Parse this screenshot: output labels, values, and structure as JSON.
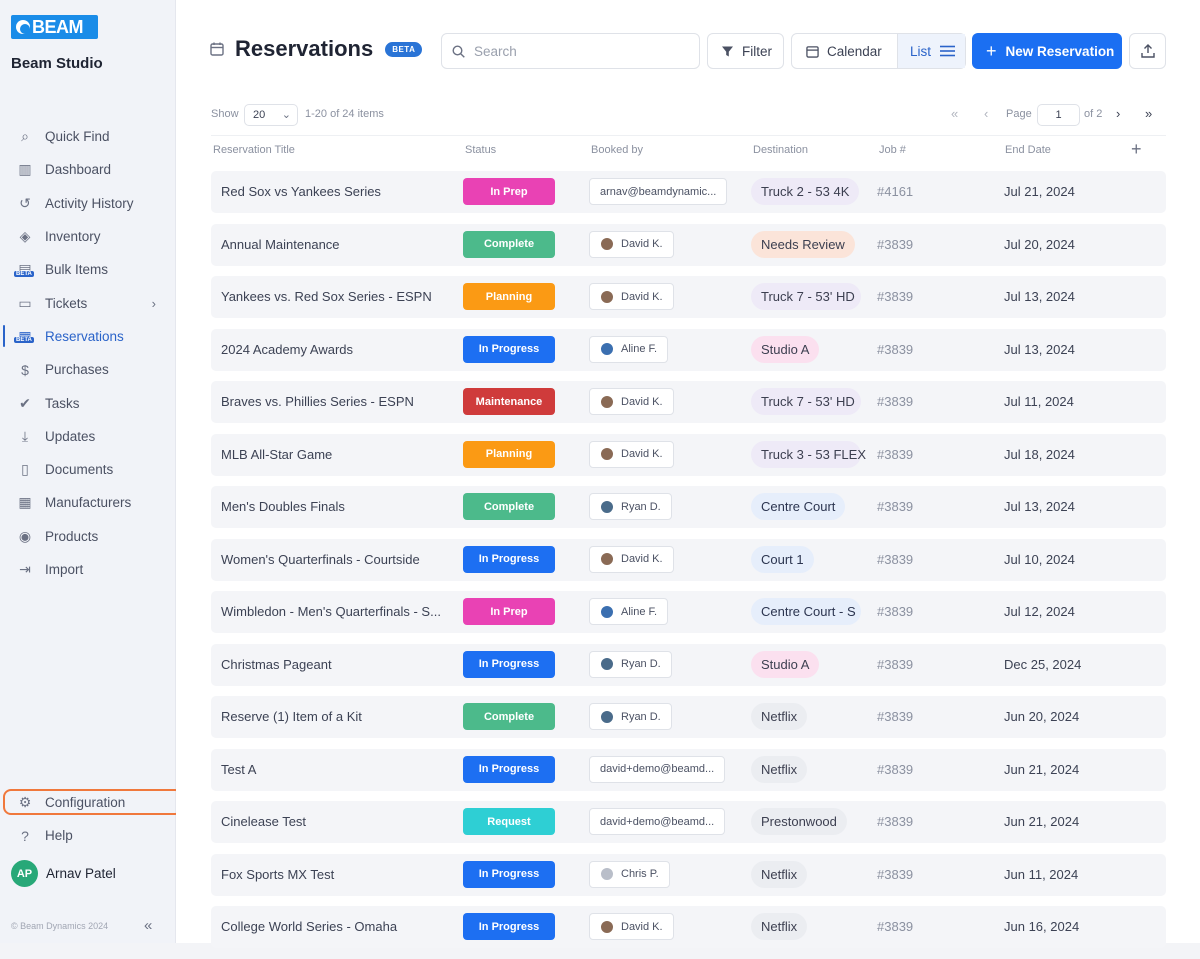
{
  "sidebar": {
    "logo_text": "BEAM",
    "org_name": "Beam Studio",
    "items": [
      {
        "label": "Quick Find",
        "icon": "search-icon"
      },
      {
        "label": "Dashboard",
        "icon": "bar-chart-icon"
      },
      {
        "label": "Activity History",
        "icon": "history-icon"
      },
      {
        "label": "Inventory",
        "icon": "box-icon"
      },
      {
        "label": "Bulk Items",
        "icon": "bulk-items-icon",
        "badge": "BETA"
      },
      {
        "label": "Tickets",
        "icon": "tickets-icon"
      },
      {
        "label": "Reservations",
        "icon": "reservations-icon",
        "badge": "BETA",
        "active": true
      },
      {
        "label": "Purchases",
        "icon": "purchases-icon"
      },
      {
        "label": "Tasks",
        "icon": "check-circle-icon"
      },
      {
        "label": "Updates",
        "icon": "download-icon"
      },
      {
        "label": "Documents",
        "icon": "document-icon"
      },
      {
        "label": "Manufacturers",
        "icon": "building-icon"
      },
      {
        "label": "Products",
        "icon": "camera-icon"
      },
      {
        "label": "Import",
        "icon": "import-icon"
      }
    ],
    "bottom_items": [
      {
        "label": "Configuration",
        "icon": "gear-icon"
      },
      {
        "label": "Help",
        "icon": "help-icon"
      }
    ],
    "user": {
      "initials": "AP",
      "name": "Arnav Patel"
    },
    "copyright": "© Beam Dynamics 2024"
  },
  "header": {
    "title": "Reservations",
    "beta": "BETA",
    "search_placeholder": "Search",
    "filter_label": "Filter",
    "calendar_label": "Calendar",
    "list_label": "List",
    "new_label": "New Reservation"
  },
  "pager": {
    "show_label": "Show",
    "page_size": "20",
    "range": "1-20 of 24 items",
    "page_label": "Page",
    "page": "1",
    "of": "of 2"
  },
  "columns": {
    "title": "Reservation Title",
    "status": "Status",
    "booked": "Booked by",
    "dest": "Destination",
    "job": "Job #",
    "end": "End Date"
  },
  "colors": {
    "accent": "#1b6ff2",
    "highlight": "#f0783c"
  },
  "rows": [
    {
      "title": "Red Sox vs Yankees Series",
      "status": "In Prep",
      "status_color": "#e942b4",
      "booked": "arnav@beamdynamic...",
      "avatar": "",
      "dest": "Truck 2 - 53 4K",
      "dest_bg": "#eeeaf7",
      "dest_fg": "#3c3f50",
      "job": "#4161",
      "end": "Jul 21, 2024"
    },
    {
      "title": "Annual Maintenance",
      "status": "Complete",
      "status_color": "#4cba8b",
      "booked": "David K.",
      "avatar": "#8a6a55",
      "dest": "Needs Review",
      "dest_bg": "#fbe4d9",
      "dest_fg": "#3c3f50",
      "job": "#3839",
      "end": "Jul 20, 2024"
    },
    {
      "title": "Yankees vs. Red Sox Series - ESPN",
      "status": "Planning",
      "status_color": "#fb9a14",
      "booked": "David K.",
      "avatar": "#8a6a55",
      "dest": "Truck 7 - 53' HD",
      "dest_bg": "#eeeaf7",
      "dest_fg": "#3c3f50",
      "job": "#3839",
      "end": "Jul 13, 2024"
    },
    {
      "title": "2024 Academy Awards",
      "status": "In Progress",
      "status_color": "#1d6ff2",
      "booked": "Aline F.",
      "avatar": "#3b6fb0",
      "dest": "Studio A",
      "dest_bg": "#fbe0ef",
      "dest_fg": "#3c3f50",
      "job": "#3839",
      "end": "Jul 13, 2024"
    },
    {
      "title": "Braves vs. Phillies Series - ESPN",
      "status": "Maintenance",
      "status_color": "#cf3b3b",
      "booked": "David K.",
      "avatar": "#8a6a55",
      "dest": "Truck 7 - 53' HD",
      "dest_bg": "#eeeaf7",
      "dest_fg": "#3c3f50",
      "job": "#3839",
      "end": "Jul 11, 2024"
    },
    {
      "title": "MLB All-Star Game",
      "status": "Planning",
      "status_color": "#fb9a14",
      "booked": "David K.",
      "avatar": "#8a6a55",
      "dest": "Truck 3 - 53 FLEX",
      "dest_bg": "#eeeaf7",
      "dest_fg": "#3c3f50",
      "job": "#3839",
      "end": "Jul 18, 2024"
    },
    {
      "title": "Men's Doubles Finals",
      "status": "Complete",
      "status_color": "#4cba8b",
      "booked": "Ryan D.",
      "avatar": "#4a6b8a",
      "dest": "Centre Court",
      "dest_bg": "#e6eefb",
      "dest_fg": "#2c3550",
      "job": "#3839",
      "end": "Jul 13, 2024"
    },
    {
      "title": "Women's Quarterfinals - Courtside",
      "status": "In Progress",
      "status_color": "#1d6ff2",
      "booked": "David K.",
      "avatar": "#8a6a55",
      "dest": "Court 1",
      "dest_bg": "#e6eefb",
      "dest_fg": "#2c3550",
      "job": "#3839",
      "end": "Jul 10, 2024"
    },
    {
      "title": "Wimbledon - Men's Quarterfinals - S...",
      "status": "In Prep",
      "status_color": "#e942b4",
      "booked": "Aline F.",
      "avatar": "#3b6fb0",
      "dest": "Centre Court - S",
      "dest_bg": "#e6eefb",
      "dest_fg": "#2c3550",
      "job": "#3839",
      "end": "Jul 12, 2024"
    },
    {
      "title": "Christmas Pageant",
      "status": "In Progress",
      "status_color": "#1d6ff2",
      "booked": "Ryan D.",
      "avatar": "#4a6b8a",
      "dest": "Studio A",
      "dest_bg": "#fbe0ef",
      "dest_fg": "#3c3f50",
      "job": "#3839",
      "end": "Dec 25, 2024"
    },
    {
      "title": "Reserve (1) Item of a Kit",
      "status": "Complete",
      "status_color": "#4cba8b",
      "booked": "Ryan D.",
      "avatar": "#4a6b8a",
      "dest": "Netflix",
      "dest_bg": "#ebedf1",
      "dest_fg": "#3c3f50",
      "job": "#3839",
      "end": "Jun 20, 2024"
    },
    {
      "title": "Test A",
      "status": "In Progress",
      "status_color": "#1d6ff2",
      "booked": "david+demo@beamd...",
      "avatar": "",
      "dest": "Netflix",
      "dest_bg": "#ebedf1",
      "dest_fg": "#3c3f50",
      "job": "#3839",
      "end": "Jun 21, 2024"
    },
    {
      "title": "Cinelease Test",
      "status": "Request",
      "status_color": "#2ecfd4",
      "booked": "david+demo@beamd...",
      "avatar": "",
      "dest": "Prestonwood",
      "dest_bg": "#ebedf1",
      "dest_fg": "#3c3f50",
      "job": "#3839",
      "end": "Jun 21, 2024"
    },
    {
      "title": "Fox Sports MX Test",
      "status": "In Progress",
      "status_color": "#1d6ff2",
      "booked": "Chris P.",
      "avatar": "#b9bec9",
      "dest": "Netflix",
      "dest_bg": "#ebedf1",
      "dest_fg": "#3c3f50",
      "job": "#3839",
      "end": "Jun 11, 2024"
    },
    {
      "title": "College World Series - Omaha",
      "status": "In Progress",
      "status_color": "#1d6ff2",
      "booked": "David K.",
      "avatar": "#8a6a55",
      "dest": "Netflix",
      "dest_bg": "#ebedf1",
      "dest_fg": "#3c3f50",
      "job": "#3839",
      "end": "Jun 16, 2024"
    }
  ]
}
